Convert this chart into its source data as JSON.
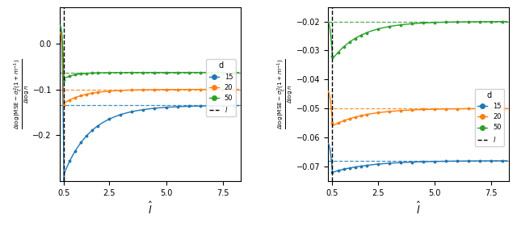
{
  "subplot_a": {
    "xlim": [
      0.3,
      8.3
    ],
    "ylim": [
      -0.3,
      0.08
    ],
    "yticks": [
      0.0,
      -0.1,
      -0.2
    ],
    "xticks": [
      0.5,
      2.5,
      5.0,
      7.5
    ],
    "vline_x": 0.5,
    "hlines": {
      "d15": -0.135,
      "d20": -0.1,
      "d50": -0.063
    },
    "colors": {
      "d15": "#1f77b4",
      "d20": "#ff7f0e",
      "d50": "#2ca02c"
    },
    "xlabel": "$\\hat{l}$",
    "ylabel": "$\\frac{\\Delta\\log(\\mathrm{MSE}-\\sigma_{\\xi}^{2}(1+m^{-1})}{\\Delta\\log n}$"
  },
  "subplot_b": {
    "xlim": [
      0.3,
      8.3
    ],
    "ylim": [
      -0.075,
      -0.015
    ],
    "yticks": [
      -0.02,
      -0.03,
      -0.04,
      -0.05,
      -0.06,
      -0.07
    ],
    "xticks": [
      0.5,
      2.5,
      5.0,
      7.5
    ],
    "vline_x": 0.5,
    "hlines": {
      "d15": -0.068,
      "d20": -0.05,
      "d50": -0.02
    },
    "colors": {
      "d15": "#1f77b4",
      "d20": "#ff7f0e",
      "d50": "#2ca02c"
    },
    "xlabel": "$\\hat{l}$",
    "ylabel": "$\\frac{\\Delta\\log(\\mathrm{MSE}-\\sigma_{\\xi}^{2}(1+m^{-1})}{\\Delta\\log n}$"
  }
}
